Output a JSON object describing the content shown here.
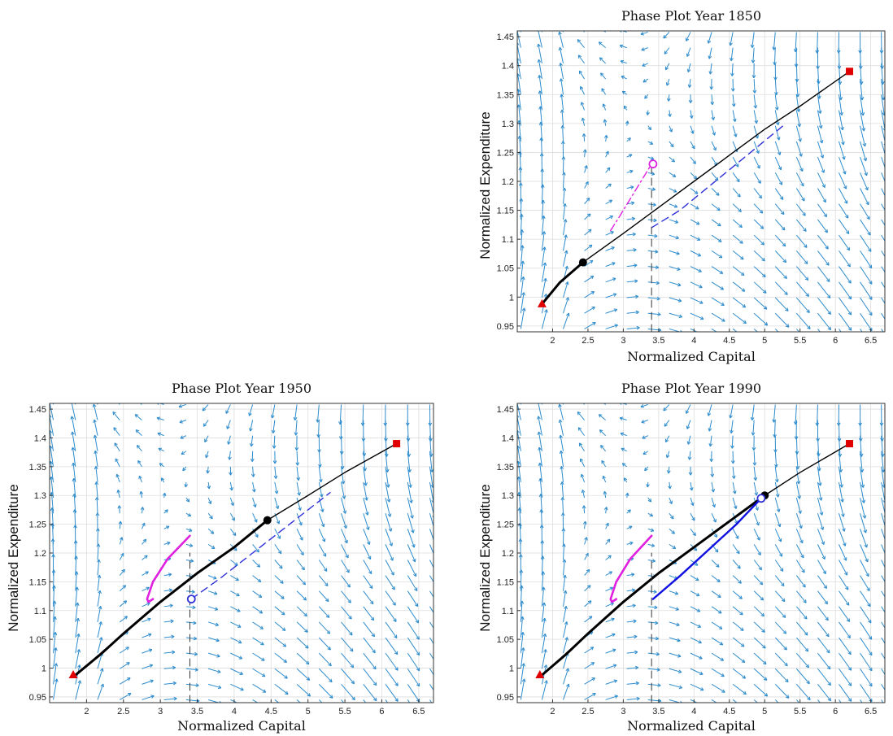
{
  "chart_data": [
    {
      "type": "line",
      "title": "Phase Plot Year 1850",
      "xlabel": "Normalized Capital",
      "ylabel": "Normalized Expenditure",
      "xlim": [
        1.5,
        6.7
      ],
      "ylim": [
        0.94,
        1.46
      ],
      "xticks": [
        "2",
        "2.5",
        "3",
        "3.5",
        "4",
        "4.5",
        "5",
        "5.5",
        "6",
        "6.5"
      ],
      "yticks": [
        "0.95",
        "1",
        "1.05",
        "1.1",
        "1.15",
        "1.2",
        "1.25",
        "1.3",
        "1.35",
        "1.4",
        "1.45"
      ],
      "grid": true,
      "series": [
        {
          "role": "trajectory-solid",
          "style": "solid",
          "color": "#000000",
          "width": 1.4,
          "x": [
            1.85,
            2.1,
            2.43,
            3.0,
            3.5,
            4.0,
            4.5,
            5.0,
            5.5,
            6.2
          ],
          "y": [
            0.988,
            1.025,
            1.06,
            1.11,
            1.155,
            1.2,
            1.245,
            1.29,
            1.33,
            1.39
          ]
        },
        {
          "role": "trajectory-bold",
          "style": "solid",
          "color": "#000000",
          "width": 3,
          "x": [
            1.85,
            2.1,
            2.43
          ],
          "y": [
            0.988,
            1.025,
            1.06
          ]
        },
        {
          "role": "magenta-dashed",
          "style": "dashdot",
          "color": "#e020e0",
          "width": 1.4,
          "x": [
            2.82,
            2.95,
            3.1,
            3.25,
            3.4
          ],
          "y": [
            1.115,
            1.14,
            1.17,
            1.2,
            1.23
          ]
        },
        {
          "role": "blue-dashed",
          "style": "dashed",
          "color": "#3030d8",
          "width": 1.4,
          "x": [
            3.4,
            3.8,
            4.2,
            4.6,
            5.0,
            5.3
          ],
          "y": [
            1.12,
            1.15,
            1.19,
            1.23,
            1.27,
            1.3
          ]
        },
        {
          "role": "vertical-dashed",
          "style": "dashed",
          "color": "#333333",
          "width": 1,
          "x": [
            3.4,
            3.4
          ],
          "y": [
            0.94,
            1.23
          ]
        }
      ],
      "markers": [
        {
          "role": "start-triangle",
          "shape": "triangle",
          "color": "#e00000",
          "x": 1.85,
          "y": 0.988
        },
        {
          "role": "end-square",
          "shape": "square",
          "color": "#e00000",
          "x": 6.2,
          "y": 1.39
        },
        {
          "role": "current-dot",
          "shape": "dot",
          "color": "#000000",
          "x": 2.43,
          "y": 1.06
        },
        {
          "role": "open-circle",
          "shape": "circle",
          "color": "#e020e0",
          "x": 3.42,
          "y": 1.23
        }
      ],
      "quiver_color": "#2e8ccc"
    },
    {
      "type": "line",
      "title": "Phase Plot Year 1950",
      "xlabel": "Normalized Capital",
      "ylabel": "Normalized Expenditure",
      "xlim": [
        1.5,
        6.7
      ],
      "ylim": [
        0.94,
        1.46
      ],
      "xticks": [
        "2",
        "2.5",
        "3",
        "3.5",
        "4",
        "4.5",
        "5",
        "5.5",
        "6",
        "6.5"
      ],
      "yticks": [
        "0.95",
        "1",
        "1.05",
        "1.1",
        "1.15",
        "1.2",
        "1.25",
        "1.3",
        "1.35",
        "1.4",
        "1.45"
      ],
      "grid": true,
      "series": [
        {
          "role": "trajectory-solid",
          "style": "solid",
          "color": "#000000",
          "width": 1.4,
          "x": [
            1.85,
            2.5,
            3.0,
            3.5,
            4.0,
            4.45,
            5.0,
            5.5,
            6.2
          ],
          "y": [
            0.988,
            1.06,
            1.115,
            1.165,
            1.21,
            1.257,
            1.3,
            1.34,
            1.39
          ]
        },
        {
          "role": "trajectory-bold",
          "style": "solid",
          "color": "#000000",
          "width": 3,
          "x": [
            1.85,
            2.2,
            2.5,
            3.0,
            3.5,
            4.0,
            4.45
          ],
          "y": [
            0.988,
            1.025,
            1.06,
            1.115,
            1.165,
            1.21,
            1.257
          ]
        },
        {
          "role": "magenta-loop",
          "style": "solid",
          "color": "#e020e0",
          "width": 2.6,
          "x": [
            3.4,
            3.1,
            2.9,
            2.82,
            2.84,
            2.9
          ],
          "y": [
            1.23,
            1.19,
            1.15,
            1.12,
            1.115,
            1.12
          ]
        },
        {
          "role": "blue-dashed",
          "style": "dashed",
          "color": "#3030d8",
          "width": 1.4,
          "x": [
            3.42,
            3.8,
            4.2,
            4.6,
            5.0,
            5.3
          ],
          "y": [
            1.12,
            1.155,
            1.195,
            1.235,
            1.275,
            1.305
          ]
        },
        {
          "role": "vertical-dashed",
          "style": "dashed",
          "color": "#333333",
          "width": 1,
          "x": [
            3.4,
            3.4
          ],
          "y": [
            0.94,
            1.2
          ]
        }
      ],
      "markers": [
        {
          "role": "start-triangle",
          "shape": "triangle",
          "color": "#e00000",
          "x": 1.82,
          "y": 0.988
        },
        {
          "role": "end-square",
          "shape": "square",
          "color": "#e00000",
          "x": 6.2,
          "y": 1.39
        },
        {
          "role": "current-dot",
          "shape": "dot",
          "color": "#000000",
          "x": 4.45,
          "y": 1.257
        },
        {
          "role": "open-circle",
          "shape": "circle",
          "color": "#3030d8",
          "x": 3.42,
          "y": 1.12
        }
      ],
      "quiver_color": "#2e8ccc"
    },
    {
      "type": "line",
      "title": "Phase Plot Year 1990",
      "xlabel": "Normalized Capital",
      "ylabel": "Normalized Expenditure",
      "xlim": [
        1.5,
        6.7
      ],
      "ylim": [
        0.94,
        1.46
      ],
      "xticks": [
        "2",
        "2.5",
        "3",
        "3.5",
        "4",
        "4.5",
        "5",
        "5.5",
        "6",
        "6.5"
      ],
      "yticks": [
        "0.95",
        "1",
        "1.05",
        "1.1",
        "1.15",
        "1.2",
        "1.25",
        "1.3",
        "1.35",
        "1.4",
        "1.45"
      ],
      "grid": true,
      "series": [
        {
          "role": "trajectory-solid",
          "style": "solid",
          "color": "#000000",
          "width": 1.4,
          "x": [
            1.85,
            2.5,
            3.0,
            3.5,
            4.0,
            4.5,
            5.0,
            5.5,
            6.2
          ],
          "y": [
            0.988,
            1.06,
            1.115,
            1.165,
            1.21,
            1.255,
            1.3,
            1.34,
            1.39
          ]
        },
        {
          "role": "trajectory-bold",
          "style": "solid",
          "color": "#000000",
          "width": 3,
          "x": [
            1.85,
            2.2,
            2.5,
            3.0,
            3.5,
            4.0,
            4.5,
            5.0
          ],
          "y": [
            0.988,
            1.025,
            1.06,
            1.115,
            1.165,
            1.21,
            1.255,
            1.3
          ]
        },
        {
          "role": "magenta-loop",
          "style": "solid",
          "color": "#e020e0",
          "width": 2.6,
          "x": [
            3.4,
            3.1,
            2.9,
            2.82,
            2.84,
            2.9
          ],
          "y": [
            1.23,
            1.19,
            1.15,
            1.12,
            1.115,
            1.12
          ]
        },
        {
          "role": "blue-solid",
          "style": "solid",
          "color": "#1010e0",
          "width": 2.4,
          "x": [
            3.42,
            3.8,
            4.2,
            4.6,
            4.95
          ],
          "y": [
            1.12,
            1.16,
            1.205,
            1.25,
            1.295
          ]
        },
        {
          "role": "vertical-dashed",
          "style": "dashed",
          "color": "#333333",
          "width": 1,
          "x": [
            3.4,
            3.4
          ],
          "y": [
            0.94,
            1.2
          ]
        }
      ],
      "markers": [
        {
          "role": "start-triangle",
          "shape": "triangle",
          "color": "#e00000",
          "x": 1.82,
          "y": 0.988
        },
        {
          "role": "end-square",
          "shape": "square",
          "color": "#e00000",
          "x": 6.2,
          "y": 1.39
        },
        {
          "role": "current-dot",
          "shape": "dot",
          "color": "#000000",
          "x": 5.0,
          "y": 1.3
        },
        {
          "role": "open-circle",
          "shape": "circle",
          "color": "#3030d8",
          "x": 4.95,
          "y": 1.295
        }
      ],
      "quiver_color": "#2e8ccc"
    }
  ]
}
